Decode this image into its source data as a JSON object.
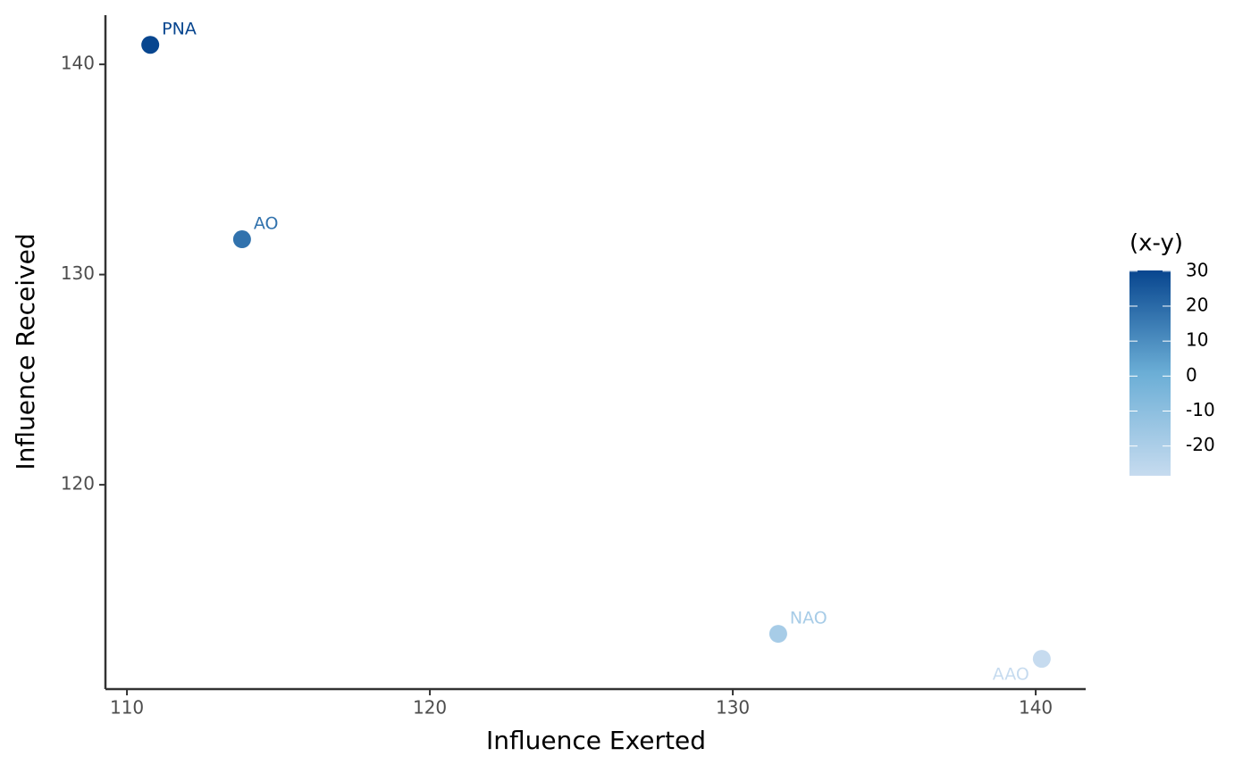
{
  "chart_data": {
    "type": "scatter",
    "x_label": "Influence Exerted",
    "y_label": "Influence Received",
    "legend_title": "(x-y)",
    "labels": [
      "PNA",
      "AO",
      "NAO",
      "AAO"
    ],
    "x": [
      110.77,
      113.8,
      131.5,
      140.2
    ],
    "values": [
      140.93,
      131.68,
      112.91,
      111.72
    ],
    "color_values": [
      30.2,
      17.9,
      -18.6,
      -28.5
    ],
    "color_scale": [
      "#c6dbef",
      "#6baed6",
      "#08468f"
    ],
    "colorlim": [
      -28.5,
      30.2
    ],
    "colorticks": [
      30,
      20,
      10,
      0,
      -10,
      -20
    ],
    "xlim": [
      109.29,
      141.65
    ],
    "ylim": [
      110.28,
      142.34
    ],
    "xticks": [
      110,
      120,
      130,
      140
    ],
    "yticks": [
      120,
      130,
      140
    ],
    "grid": false
  }
}
